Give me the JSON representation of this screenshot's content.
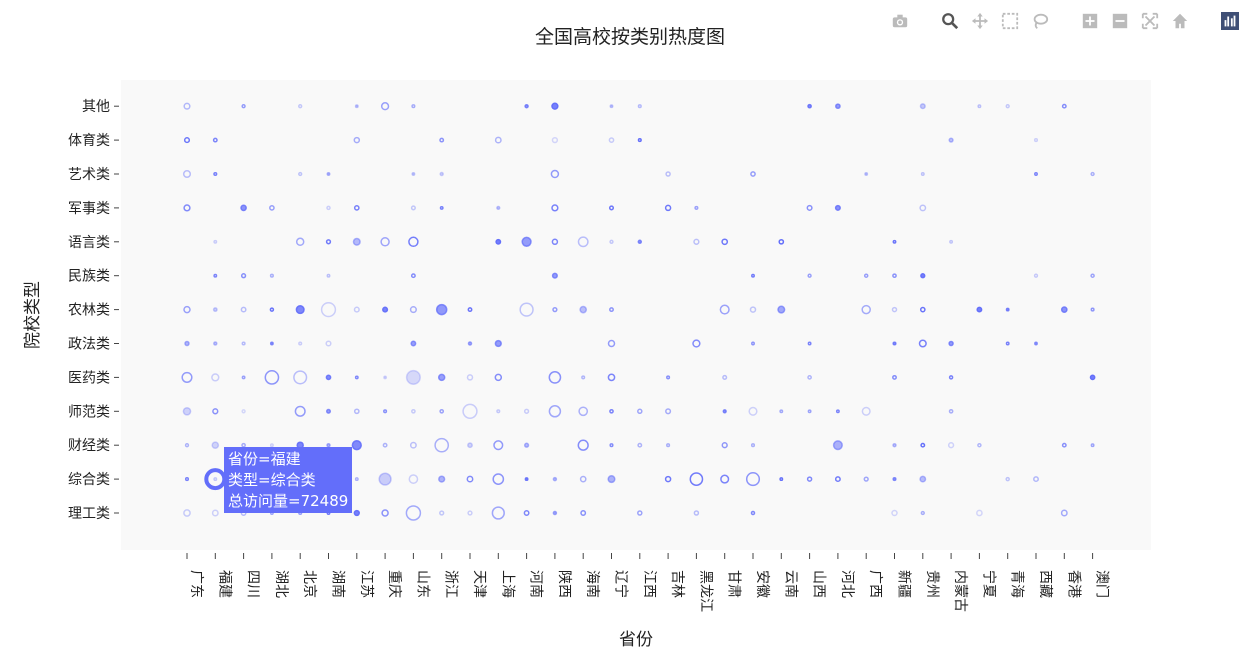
{
  "chart_data": {
    "type": "scatter",
    "title": "全国高校按类别热度图",
    "xlabel": "省份",
    "ylabel": "院校类型",
    "x_categories": [
      "广东",
      "福建",
      "四川",
      "湖北",
      "北京",
      "湖南",
      "江苏",
      "重庆",
      "山东",
      "浙江",
      "天津",
      "上海",
      "河南",
      "陕西",
      "海南",
      "辽宁",
      "江西",
      "吉林",
      "黑龙江",
      "甘肃",
      "安徽",
      "云南",
      "山西",
      "河北",
      "广西",
      "新疆",
      "贵州",
      "内蒙古",
      "宁夏",
      "青海",
      "西藏",
      "香港",
      "澳门"
    ],
    "y_categories": [
      "理工类",
      "综合类",
      "财经类",
      "师范类",
      "医药类",
      "政法类",
      "农林类",
      "民族类",
      "语言类",
      "军事类",
      "艺术类",
      "体育类",
      "其他"
    ],
    "marker_color": "#636efa",
    "plot_bgcolor": "#f9f9f9",
    "tooltip": {
      "province_line": "省份=福建",
      "type_line": "类型=综合类",
      "visits_line": "总访问量=72489"
    }
  },
  "modebar": {
    "icons": [
      "camera-icon",
      "zoom-icon",
      "pan-icon",
      "box-select-icon",
      "lasso-icon",
      "zoom-in-icon",
      "zoom-out-icon",
      "autoscale-icon",
      "home-icon",
      "plotly-logo-icon"
    ]
  }
}
